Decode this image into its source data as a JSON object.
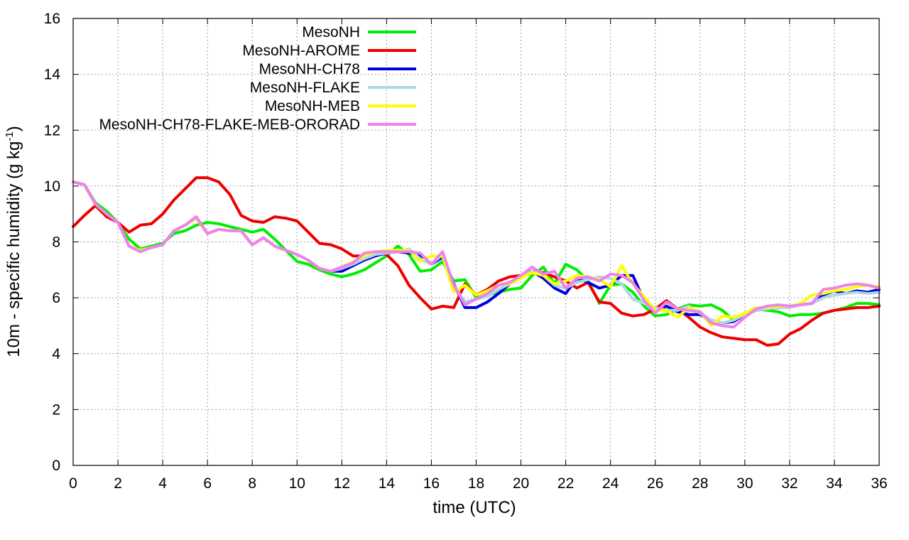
{
  "chart_data": {
    "type": "line",
    "title": "",
    "xlabel": "time (UTC)",
    "ylabel": {
      "main": "10m - specific humidity (g kg",
      "sup": "-1",
      "tail": ")"
    },
    "xlim": [
      0,
      36
    ],
    "ylim": [
      0,
      16
    ],
    "xticks": [
      0,
      2,
      4,
      6,
      8,
      10,
      12,
      14,
      16,
      18,
      20,
      22,
      24,
      26,
      28,
      30,
      32,
      34,
      36
    ],
    "yticks": [
      0,
      2,
      4,
      6,
      8,
      10,
      12,
      14,
      16
    ],
    "grid": true,
    "legend_position": "top-left",
    "series": [
      {
        "name": "MesoNH",
        "color": "#00ee00",
        "x": [
          0,
          0.5,
          1,
          1.5,
          2,
          2.5,
          3,
          3.5,
          4,
          4.5,
          5,
          5.5,
          6,
          6.5,
          7,
          7.5,
          8,
          8.5,
          9,
          9.5,
          10,
          10.5,
          11,
          11.5,
          12,
          12.5,
          13,
          13.5,
          14,
          14.5,
          15,
          15.5,
          16,
          16.5,
          17,
          17.5,
          18,
          18.5,
          19,
          19.5,
          20,
          20.5,
          21,
          21.5,
          22,
          22.5,
          23,
          23.5,
          24,
          24.5,
          25,
          25.5,
          26,
          26.5,
          27,
          27.5,
          28,
          28.5,
          29,
          29.5,
          30,
          30.5,
          31,
          31.5,
          32,
          32.5,
          33,
          33.5,
          34,
          34.5,
          35,
          35.5,
          36
        ],
        "y": [
          10.15,
          10.05,
          9.4,
          9.1,
          8.7,
          8.1,
          7.75,
          7.85,
          7.95,
          8.3,
          8.4,
          8.6,
          8.7,
          8.65,
          8.55,
          8.45,
          8.35,
          8.45,
          8.1,
          7.7,
          7.3,
          7.2,
          7.0,
          6.85,
          6.75,
          6.85,
          7.0,
          7.25,
          7.5,
          7.85,
          7.55,
          6.95,
          7.0,
          7.3,
          6.6,
          6.65,
          6.0,
          6.1,
          6.2,
          6.3,
          6.35,
          6.8,
          7.1,
          6.5,
          7.2,
          7.0,
          6.6,
          5.8,
          6.45,
          6.5,
          6.2,
          5.7,
          5.35,
          5.4,
          5.6,
          5.75,
          5.7,
          5.75,
          5.55,
          5.2,
          5.45,
          5.6,
          5.55,
          5.5,
          5.35,
          5.4,
          5.4,
          5.45,
          5.55,
          5.65,
          5.8,
          5.8,
          5.75
        ]
      },
      {
        "name": "MesoNH-AROME",
        "color": "#ee0000",
        "x": [
          0,
          0.5,
          1,
          1.5,
          2,
          2.5,
          3,
          3.5,
          4,
          4.5,
          5,
          5.5,
          6,
          6.5,
          7,
          7.5,
          8,
          8.5,
          9,
          9.5,
          10,
          10.5,
          11,
          11.5,
          12,
          12.5,
          13,
          13.5,
          14,
          14.5,
          15,
          15.5,
          16,
          16.5,
          17,
          17.5,
          18,
          18.5,
          19,
          19.5,
          20,
          20.5,
          21,
          21.5,
          22,
          22.5,
          23,
          23.5,
          24,
          24.5,
          25,
          25.5,
          26,
          26.5,
          27,
          27.5,
          28,
          28.5,
          29,
          29.5,
          30,
          30.5,
          31,
          31.5,
          32,
          32.5,
          33,
          33.5,
          34,
          34.5,
          35,
          35.5,
          36
        ],
        "y": [
          8.55,
          8.95,
          9.3,
          8.9,
          8.7,
          8.35,
          8.6,
          8.65,
          9.0,
          9.5,
          9.9,
          10.3,
          10.3,
          10.15,
          9.7,
          8.95,
          8.75,
          8.7,
          8.9,
          8.85,
          8.75,
          8.35,
          7.95,
          7.9,
          7.75,
          7.5,
          7.5,
          7.6,
          7.55,
          7.15,
          6.45,
          6.0,
          5.6,
          5.7,
          5.65,
          6.5,
          6.1,
          6.3,
          6.6,
          6.75,
          6.8,
          6.95,
          6.9,
          6.75,
          6.6,
          6.35,
          6.55,
          5.85,
          5.8,
          5.45,
          5.35,
          5.4,
          5.6,
          5.9,
          5.6,
          5.3,
          4.95,
          4.75,
          4.6,
          4.55,
          4.5,
          4.5,
          4.3,
          4.35,
          4.7,
          4.9,
          5.2,
          5.45,
          5.55,
          5.6,
          5.65,
          5.65,
          5.7
        ]
      },
      {
        "name": "MesoNH-CH78",
        "color": "#0000dd",
        "x": [
          0,
          0.5,
          1,
          1.5,
          2,
          2.5,
          3,
          3.5,
          4,
          4.5,
          5,
          5.5,
          6,
          6.5,
          7,
          7.5,
          8,
          8.5,
          9,
          9.5,
          10,
          10.5,
          11,
          11.5,
          12,
          12.5,
          13,
          13.5,
          14,
          14.5,
          15,
          15.5,
          16,
          16.5,
          17,
          17.5,
          18,
          18.5,
          19,
          19.5,
          20,
          20.5,
          21,
          21.5,
          22,
          22.5,
          23,
          23.5,
          24,
          24.5,
          25,
          25.5,
          26,
          26.5,
          27,
          27.5,
          28,
          28.5,
          29,
          29.5,
          30,
          30.5,
          31,
          31.5,
          32,
          32.5,
          33,
          33.5,
          34,
          34.5,
          35,
          35.5,
          36
        ],
        "y": [
          10.15,
          10.05,
          9.35,
          9.0,
          8.7,
          7.85,
          7.7,
          7.8,
          7.9,
          8.4,
          8.6,
          8.85,
          8.3,
          8.45,
          8.4,
          8.4,
          7.9,
          8.15,
          7.85,
          7.7,
          7.55,
          7.35,
          7.05,
          6.95,
          6.95,
          7.15,
          7.35,
          7.5,
          7.6,
          7.65,
          7.6,
          7.5,
          7.2,
          7.45,
          6.5,
          5.65,
          5.65,
          5.85,
          6.15,
          6.5,
          6.75,
          6.95,
          6.7,
          6.35,
          6.15,
          6.7,
          6.55,
          6.35,
          6.45,
          6.8,
          6.8,
          5.9,
          5.55,
          5.7,
          5.5,
          5.4,
          5.4,
          5.2,
          5.1,
          5.15,
          5.4,
          5.55,
          5.6,
          5.65,
          5.7,
          5.75,
          5.8,
          6.1,
          6.25,
          6.15,
          6.25,
          6.2,
          6.3
        ]
      },
      {
        "name": "MesoNH-FLAKE",
        "color": "#add8e6",
        "x": [
          0,
          0.5,
          1,
          1.5,
          2,
          2.5,
          3,
          3.5,
          4,
          4.5,
          5,
          5.5,
          6,
          6.5,
          7,
          7.5,
          8,
          8.5,
          9,
          9.5,
          10,
          10.5,
          11,
          11.5,
          12,
          12.5,
          13,
          13.5,
          14,
          14.5,
          15,
          15.5,
          16,
          16.5,
          17,
          17.5,
          18,
          18.5,
          19,
          19.5,
          20,
          20.5,
          21,
          21.5,
          22,
          22.5,
          23,
          23.5,
          24,
          24.5,
          25,
          25.5,
          26,
          26.5,
          27,
          27.5,
          28,
          28.5,
          29,
          29.5,
          30,
          30.5,
          31,
          31.5,
          32,
          32.5,
          33,
          33.5,
          34,
          34.5,
          35,
          35.5,
          36
        ],
        "y": [
          10.15,
          10.05,
          9.35,
          9.0,
          8.7,
          7.85,
          7.7,
          7.8,
          7.9,
          8.4,
          8.6,
          8.9,
          8.3,
          8.45,
          8.4,
          8.4,
          7.9,
          8.15,
          7.85,
          7.7,
          7.55,
          7.35,
          7.05,
          6.95,
          7.05,
          7.2,
          7.4,
          7.55,
          7.6,
          7.65,
          7.75,
          7.4,
          7.2,
          7.55,
          6.45,
          5.85,
          5.95,
          6.05,
          6.3,
          6.5,
          6.75,
          6.95,
          6.8,
          6.45,
          6.35,
          6.55,
          6.65,
          6.75,
          6.7,
          6.5,
          5.95,
          5.8,
          5.65,
          5.55,
          5.55,
          5.7,
          5.45,
          5.2,
          5.1,
          5.2,
          5.4,
          5.55,
          5.6,
          5.65,
          5.65,
          5.75,
          5.8,
          6.0,
          6.1,
          6.15,
          6.2,
          6.15,
          6.2
        ]
      },
      {
        "name": "MesoNH-MEB",
        "color": "#ffff00",
        "x": [
          0,
          0.5,
          1,
          1.5,
          2,
          2.5,
          3,
          3.5,
          4,
          4.5,
          5,
          5.5,
          6,
          6.5,
          7,
          7.5,
          8,
          8.5,
          9,
          9.5,
          10,
          10.5,
          11,
          11.5,
          12,
          12.5,
          13,
          13.5,
          14,
          14.5,
          15,
          15.5,
          16,
          16.5,
          17,
          17.5,
          18,
          18.5,
          19,
          19.5,
          20,
          20.5,
          21,
          21.5,
          22,
          22.5,
          23,
          23.5,
          24,
          24.5,
          25,
          25.5,
          26,
          26.5,
          27,
          27.5,
          28,
          28.5,
          29,
          29.5,
          30,
          30.5,
          31,
          31.5,
          32,
          32.5,
          33,
          33.5,
          34,
          34.5,
          35,
          35.5,
          36
        ],
        "y": [
          10.15,
          10.05,
          9.35,
          9.0,
          8.7,
          7.85,
          7.7,
          7.8,
          7.9,
          8.4,
          8.6,
          8.85,
          8.3,
          8.45,
          8.4,
          8.4,
          7.9,
          8.15,
          7.85,
          7.7,
          7.55,
          7.35,
          7.05,
          6.95,
          7.1,
          7.3,
          7.5,
          7.65,
          7.7,
          7.7,
          7.7,
          7.3,
          7.5,
          7.5,
          6.2,
          6.45,
          6.1,
          6.25,
          6.45,
          6.5,
          6.7,
          6.9,
          6.8,
          6.5,
          6.6,
          6.8,
          6.75,
          6.65,
          6.4,
          7.15,
          6.5,
          6.05,
          5.55,
          5.55,
          5.3,
          5.65,
          5.5,
          5.0,
          5.35,
          5.3,
          5.45,
          5.65,
          5.65,
          5.7,
          5.7,
          5.8,
          6.1,
          6.15,
          6.25,
          6.3,
          6.4,
          6.45,
          6.4
        ]
      },
      {
        "name": "MesoNH-CH78-FLAKE-MEB-ORORAD",
        "color": "#ee82ee",
        "x": [
          0,
          0.5,
          1,
          1.5,
          2,
          2.5,
          3,
          3.5,
          4,
          4.5,
          5,
          5.5,
          6,
          6.5,
          7,
          7.5,
          8,
          8.5,
          9,
          9.5,
          10,
          10.5,
          11,
          11.5,
          12,
          12.5,
          13,
          13.5,
          14,
          14.5,
          15,
          15.5,
          16,
          16.5,
          17,
          17.5,
          18,
          18.5,
          19,
          19.5,
          20,
          20.5,
          21,
          21.5,
          22,
          22.5,
          23,
          23.5,
          24,
          24.5,
          25,
          25.5,
          26,
          26.5,
          27,
          27.5,
          28,
          28.5,
          29,
          29.5,
          30,
          30.5,
          31,
          31.5,
          32,
          32.5,
          33,
          33.5,
          34,
          34.5,
          35,
          35.5,
          36
        ],
        "y": [
          10.15,
          10.05,
          9.35,
          9.0,
          8.7,
          7.85,
          7.65,
          7.8,
          7.9,
          8.4,
          8.6,
          8.9,
          8.3,
          8.45,
          8.4,
          8.4,
          7.9,
          8.15,
          7.85,
          7.7,
          7.55,
          7.35,
          7.05,
          6.95,
          7.1,
          7.25,
          7.6,
          7.65,
          7.65,
          7.65,
          7.65,
          7.6,
          7.2,
          7.65,
          6.45,
          5.75,
          5.95,
          6.15,
          6.45,
          6.55,
          6.8,
          7.1,
          6.85,
          6.95,
          6.35,
          6.7,
          6.75,
          6.6,
          6.85,
          6.8,
          6.55,
          5.9,
          5.45,
          5.85,
          5.6,
          5.55,
          5.5,
          5.1,
          5.0,
          4.95,
          5.3,
          5.6,
          5.7,
          5.75,
          5.7,
          5.75,
          5.8,
          6.3,
          6.35,
          6.45,
          6.5,
          6.45,
          6.35
        ]
      }
    ]
  }
}
